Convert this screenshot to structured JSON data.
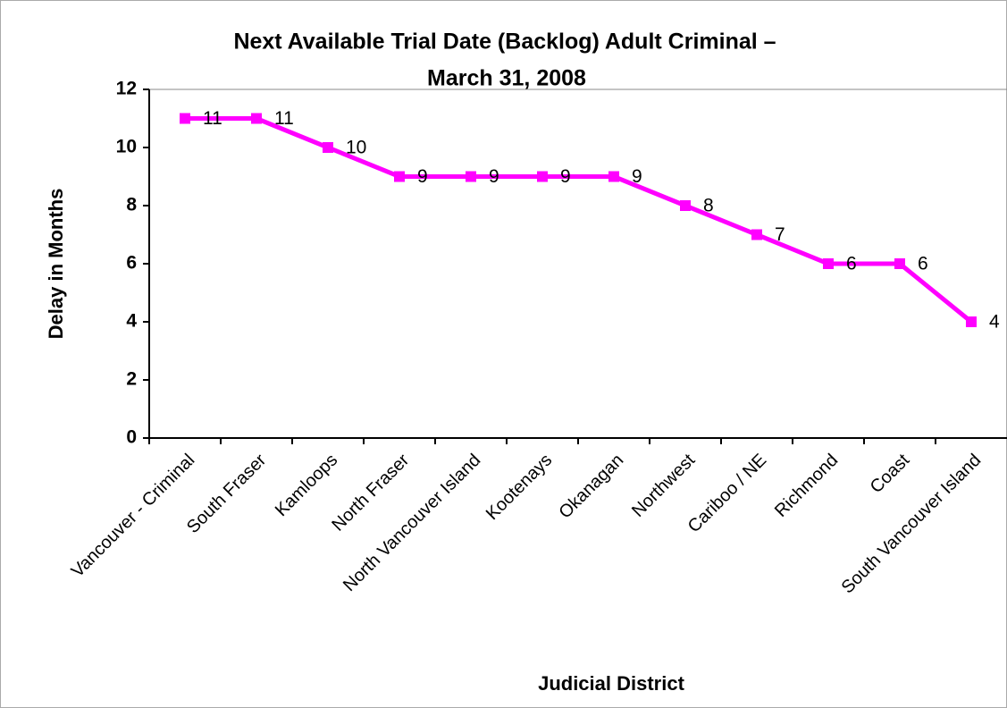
{
  "chart_data": {
    "type": "line",
    "title": [
      "Next Available Trial Date (Backlog) Adult Criminal –",
      "March 31, 2008"
    ],
    "x_label": "Judicial District",
    "y_label": "Delay in Months",
    "categories": [
      "Vancouver - Criminal",
      "South Fraser",
      "Kamloops",
      "North Fraser",
      "North Vancouver Island",
      "Kootenays",
      "Okanagan",
      "Northwest",
      "Cariboo / NE",
      "Richmond",
      "Coast",
      "South Vancouver Island"
    ],
    "series": [
      {
        "name": "Delay",
        "color": "#ff00ff",
        "values": [
          11,
          11,
          10,
          9,
          9,
          9,
          9,
          8,
          7,
          6,
          6,
          4
        ]
      }
    ],
    "ylim": [
      0,
      12
    ],
    "yticks": [
      0,
      2,
      4,
      6,
      8,
      10,
      12
    ],
    "data_labels": true
  }
}
